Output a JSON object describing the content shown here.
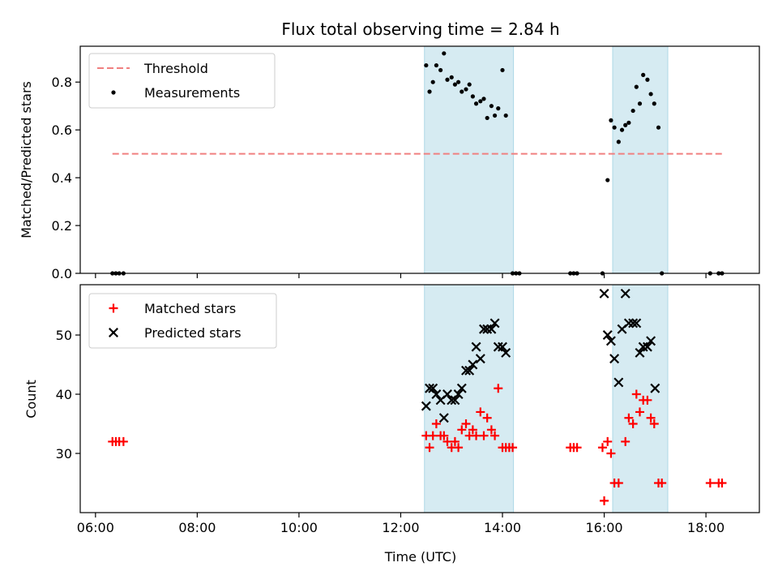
{
  "chart_data": {
    "type": "scatter",
    "title": "Flux total observing time = 2.84 h",
    "xlabel": "Time (UTC)",
    "x_ticks": [
      "06:00",
      "08:00",
      "10:00",
      "12:00",
      "14:00",
      "16:00",
      "18:00"
    ],
    "shaded_intervals": [
      [
        "12:28",
        "14:13"
      ],
      [
        "16:10",
        "17:15"
      ]
    ],
    "panels": [
      {
        "ylabel": "Matched/Predicted stars",
        "ylim": [
          0,
          0.95
        ],
        "y_ticks": [
          0.0,
          0.2,
          0.4,
          0.6,
          0.8
        ],
        "legend_position": "upper-left",
        "threshold": {
          "name": "Threshold",
          "y": 0.5,
          "x_start": "06:20",
          "x_end": "18:20",
          "color": "#f08080"
        },
        "series": [
          {
            "name": "Measurements",
            "marker": "dot",
            "color": "#000000",
            "points": [
              [
                "06:20",
                0.0
              ],
              [
                "06:24",
                0.0
              ],
              [
                "06:28",
                0.0
              ],
              [
                "06:33",
                0.0
              ],
              [
                "12:30",
                0.87
              ],
              [
                "12:34",
                0.76
              ],
              [
                "12:38",
                0.8
              ],
              [
                "12:42",
                0.87
              ],
              [
                "12:47",
                0.85
              ],
              [
                "12:51",
                0.92
              ],
              [
                "12:55",
                0.81
              ],
              [
                "13:00",
                0.82
              ],
              [
                "13:04",
                0.79
              ],
              [
                "13:08",
                0.8
              ],
              [
                "13:12",
                0.76
              ],
              [
                "13:17",
                0.77
              ],
              [
                "13:21",
                0.79
              ],
              [
                "13:25",
                0.74
              ],
              [
                "13:29",
                0.71
              ],
              [
                "13:34",
                0.72
              ],
              [
                "13:38",
                0.73
              ],
              [
                "13:42",
                0.65
              ],
              [
                "13:47",
                0.7
              ],
              [
                "13:51",
                0.66
              ],
              [
                "13:55",
                0.69
              ],
              [
                "14:00",
                0.85
              ],
              [
                "14:04",
                0.66
              ],
              [
                "14:12",
                0.0
              ],
              [
                "14:16",
                0.0
              ],
              [
                "14:20",
                0.0
              ],
              [
                "15:20",
                0.0
              ],
              [
                "15:24",
                0.0
              ],
              [
                "15:28",
                0.0
              ],
              [
                "15:58",
                0.0
              ],
              [
                "16:04",
                0.39
              ],
              [
                "16:08",
                0.64
              ],
              [
                "16:12",
                0.61
              ],
              [
                "16:17",
                0.55
              ],
              [
                "16:21",
                0.6
              ],
              [
                "16:25",
                0.62
              ],
              [
                "16:29",
                0.63
              ],
              [
                "16:34",
                0.68
              ],
              [
                "16:38",
                0.78
              ],
              [
                "16:42",
                0.71
              ],
              [
                "16:46",
                0.83
              ],
              [
                "16:51",
                0.81
              ],
              [
                "16:55",
                0.75
              ],
              [
                "16:59",
                0.71
              ],
              [
                "17:04",
                0.61
              ],
              [
                "17:08",
                0.0
              ],
              [
                "18:05",
                0.0
              ],
              [
                "18:15",
                0.0
              ],
              [
                "18:19",
                0.0
              ]
            ]
          }
        ]
      },
      {
        "ylabel": "Count",
        "ylim": [
          20,
          58.5
        ],
        "y_ticks": [
          30,
          40,
          50
        ],
        "legend_position": "upper-left",
        "series": [
          {
            "name": "Matched stars",
            "marker": "plus",
            "color": "#ff0000",
            "points": [
              [
                "06:20",
                32
              ],
              [
                "06:24",
                32
              ],
              [
                "06:28",
                32
              ],
              [
                "06:33",
                32
              ],
              [
                "12:30",
                33
              ],
              [
                "12:34",
                31
              ],
              [
                "12:38",
                33
              ],
              [
                "12:42",
                35
              ],
              [
                "12:47",
                33
              ],
              [
                "12:51",
                33
              ],
              [
                "12:55",
                32
              ],
              [
                "13:00",
                31
              ],
              [
                "13:04",
                32
              ],
              [
                "13:08",
                31
              ],
              [
                "13:12",
                34
              ],
              [
                "13:17",
                35
              ],
              [
                "13:21",
                33
              ],
              [
                "13:25",
                34
              ],
              [
                "13:29",
                33
              ],
              [
                "13:34",
                37
              ],
              [
                "13:38",
                33
              ],
              [
                "13:42",
                36
              ],
              [
                "13:47",
                34
              ],
              [
                "13:51",
                33
              ],
              [
                "13:55",
                41
              ],
              [
                "14:00",
                31
              ],
              [
                "14:04",
                31
              ],
              [
                "14:08",
                31
              ],
              [
                "14:12",
                31
              ],
              [
                "15:20",
                31
              ],
              [
                "15:24",
                31
              ],
              [
                "15:28",
                31
              ],
              [
                "15:58",
                31
              ],
              [
                "16:00",
                22
              ],
              [
                "16:04",
                32
              ],
              [
                "16:08",
                30
              ],
              [
                "16:12",
                25
              ],
              [
                "16:17",
                25
              ],
              [
                "16:25",
                32
              ],
              [
                "16:29",
                36
              ],
              [
                "16:34",
                35
              ],
              [
                "16:38",
                40
              ],
              [
                "16:42",
                37
              ],
              [
                "16:46",
                39
              ],
              [
                "16:51",
                39
              ],
              [
                "16:55",
                36
              ],
              [
                "16:59",
                35
              ],
              [
                "17:04",
                25
              ],
              [
                "17:08",
                25
              ],
              [
                "18:05",
                25
              ],
              [
                "18:15",
                25
              ],
              [
                "18:19",
                25
              ]
            ]
          },
          {
            "name": "Predicted stars",
            "marker": "x",
            "color": "#000000",
            "points": [
              [
                "12:30",
                38
              ],
              [
                "12:34",
                41
              ],
              [
                "12:38",
                41
              ],
              [
                "12:42",
                40
              ],
              [
                "12:47",
                39
              ],
              [
                "12:51",
                36
              ],
              [
                "12:55",
                40
              ],
              [
                "13:00",
                39
              ],
              [
                "13:04",
                39
              ],
              [
                "13:08",
                40
              ],
              [
                "13:12",
                41
              ],
              [
                "13:17",
                44
              ],
              [
                "13:21",
                44
              ],
              [
                "13:25",
                45
              ],
              [
                "13:29",
                48
              ],
              [
                "13:34",
                46
              ],
              [
                "13:38",
                51
              ],
              [
                "13:42",
                51
              ],
              [
                "13:47",
                51
              ],
              [
                "13:51",
                52
              ],
              [
                "13:55",
                48
              ],
              [
                "14:00",
                48
              ],
              [
                "14:04",
                47
              ],
              [
                "16:00",
                57
              ],
              [
                "16:04",
                50
              ],
              [
                "16:08",
                49
              ],
              [
                "16:12",
                46
              ],
              [
                "16:17",
                42
              ],
              [
                "16:21",
                51
              ],
              [
                "16:25",
                57
              ],
              [
                "16:29",
                52
              ],
              [
                "16:34",
                52
              ],
              [
                "16:38",
                52
              ],
              [
                "16:42",
                47
              ],
              [
                "16:46",
                48
              ],
              [
                "16:51",
                48
              ],
              [
                "16:55",
                49
              ],
              [
                "17:00",
                41
              ]
            ]
          }
        ]
      }
    ]
  }
}
